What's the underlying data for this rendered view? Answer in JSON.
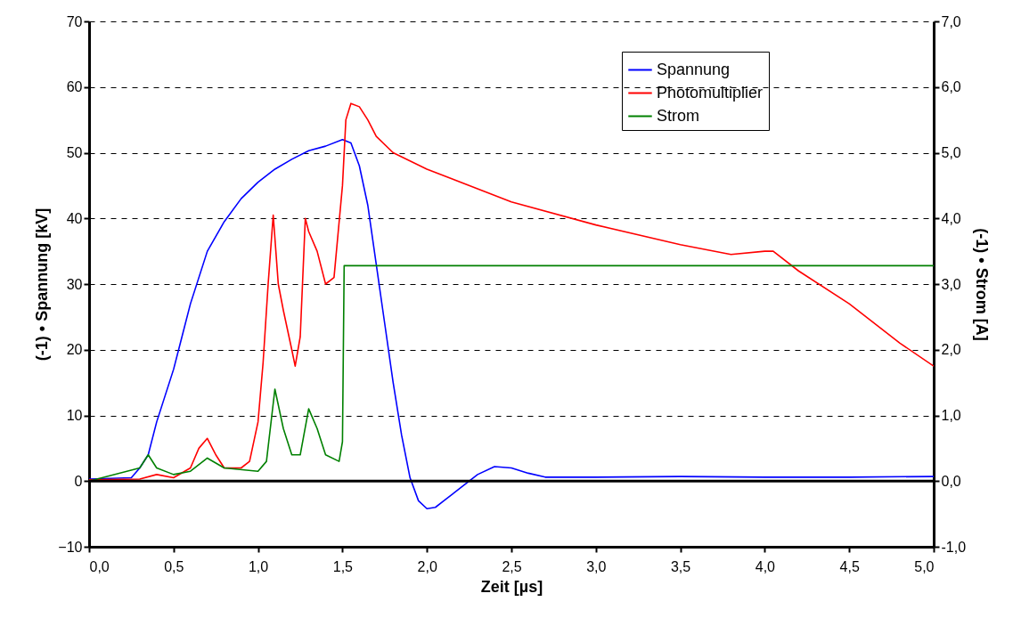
{
  "chart_data": {
    "type": "line",
    "xlabel": "Zeit [µs]",
    "ylabel": "(-1) • Spannung [kV]",
    "y2label": "(-1) • Strom [A]",
    "xlim": [
      0,
      5
    ],
    "xticks": [
      {
        "value": 0,
        "label": "0,0"
      },
      {
        "value": 0.5,
        "label": "0,5"
      },
      {
        "value": 1,
        "label": "1,0"
      },
      {
        "value": 1.5,
        "label": "1,5"
      },
      {
        "value": 2,
        "label": "2,0"
      },
      {
        "value": 2.5,
        "label": "2,5"
      },
      {
        "value": 3,
        "label": "3,0"
      },
      {
        "value": 3.5,
        "label": "3,5"
      },
      {
        "value": 4,
        "label": "4,0"
      },
      {
        "value": 4.5,
        "label": "4,5"
      },
      {
        "value": 5,
        "label": "5,0"
      }
    ],
    "ylim": [
      -10,
      70
    ],
    "yticks": [
      -10,
      0,
      10,
      20,
      30,
      40,
      50,
      60,
      70
    ],
    "y2lim": [
      -1,
      7
    ],
    "y2ticks": [
      {
        "value": -1,
        "label": "-1,0"
      },
      {
        "value": 0,
        "label": "0,0"
      },
      {
        "value": 1,
        "label": "1,0"
      },
      {
        "value": 2,
        "label": "2,0"
      },
      {
        "value": 3,
        "label": "3,0"
      },
      {
        "value": 4,
        "label": "4,0"
      },
      {
        "value": 5,
        "label": "5,0"
      },
      {
        "value": 6,
        "label": "6,0"
      },
      {
        "value": 7,
        "label": "7,0"
      }
    ],
    "grid": "y",
    "legend": "top right",
    "line_style": "solid",
    "ref_lines": [
      {
        "axis": "y",
        "value": 0,
        "color": "#000000"
      }
    ],
    "series": [
      {
        "name": "Spannung",
        "color": "#0000ff",
        "x": [
          0,
          0.25,
          0.3,
          0.35,
          0.4,
          0.45,
          0.5,
          0.55,
          0.6,
          0.65,
          0.7,
          0.8,
          0.9,
          1.0,
          1.1,
          1.2,
          1.3,
          1.4,
          1.5,
          1.55,
          1.6,
          1.65,
          1.7,
          1.75,
          1.8,
          1.85,
          1.9,
          1.95,
          2.0,
          2.05,
          2.1,
          2.2,
          2.3,
          2.4,
          2.5,
          2.6,
          2.7,
          3.0,
          3.5,
          4.0,
          4.5,
          5.0
        ],
        "values": [
          0.3,
          0.5,
          2,
          4,
          9,
          13,
          17,
          22,
          27,
          31,
          35,
          39.5,
          43,
          45.5,
          47.5,
          49,
          50.3,
          51,
          52,
          51.5,
          48,
          42,
          33,
          24,
          15,
          7,
          0.5,
          -3,
          -4.2,
          -4,
          -3,
          -1,
          1,
          2.2,
          2,
          1.2,
          0.6,
          0.6,
          0.7,
          0.6,
          0.6,
          0.7
        ]
      },
      {
        "name": "Photomultiplier",
        "color": "#ff0000",
        "x": [
          0,
          0.3,
          0.4,
          0.5,
          0.6,
          0.65,
          0.7,
          0.75,
          0.8,
          0.9,
          0.95,
          1.0,
          1.03,
          1.06,
          1.09,
          1.12,
          1.15,
          1.2,
          1.22,
          1.25,
          1.28,
          1.3,
          1.35,
          1.4,
          1.45,
          1.5,
          1.52,
          1.55,
          1.6,
          1.65,
          1.7,
          1.8,
          2.0,
          2.5,
          3.0,
          3.5,
          3.8,
          4.0,
          4.05,
          4.2,
          4.5,
          4.8,
          5.0
        ],
        "values": [
          0.2,
          0.3,
          1,
          0.5,
          2,
          5,
          6.5,
          4,
          2,
          2,
          3,
          9,
          18,
          30,
          40.5,
          30,
          26,
          20,
          17.5,
          22,
          40,
          38,
          35,
          30,
          31,
          45,
          55,
          57.5,
          57,
          55,
          52.5,
          50,
          47.5,
          42.5,
          39,
          36,
          34.5,
          35,
          35,
          32,
          27,
          21,
          17.5
        ]
      },
      {
        "name": "Strom",
        "color": "#008000",
        "axis": "y2",
        "x": [
          0,
          0.3,
          0.35,
          0.4,
          0.5,
          0.6,
          0.7,
          0.8,
          1.0,
          1.05,
          1.1,
          1.15,
          1.2,
          1.25,
          1.3,
          1.35,
          1.4,
          1.48,
          1.5,
          1.51,
          5.0
        ],
        "values": [
          0,
          0.2,
          0.4,
          0.2,
          0.1,
          0.15,
          0.35,
          0.2,
          0.15,
          0.3,
          1.4,
          0.8,
          0.4,
          0.4,
          1.1,
          0.8,
          0.4,
          0.3,
          0.6,
          3.28,
          3.28
        ]
      }
    ]
  }
}
